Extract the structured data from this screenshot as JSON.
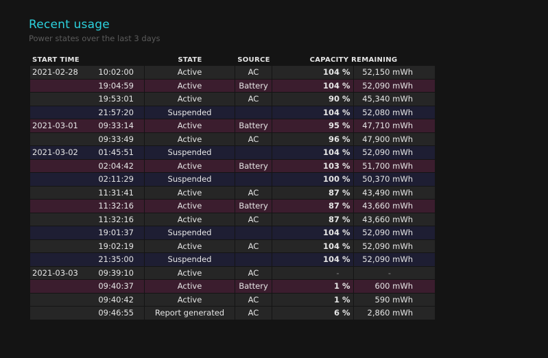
{
  "header": {
    "title": "Recent usage",
    "subtitle": "Power states over the last 3 days"
  },
  "columns": {
    "start_time": "START TIME",
    "state": "STATE",
    "source": "SOURCE",
    "capacity": "CAPACITY REMAINING"
  },
  "colors": {
    "title": "#2cd2de",
    "row_ac": "#262626",
    "row_battery": "#3b1d2e",
    "row_suspended": "#1e1e33"
  },
  "rows": [
    {
      "date": "2021-02-28",
      "time": "10:02:00",
      "state": "Active",
      "source": "AC",
      "percent": "104 %",
      "mwh": "52,150 mWh",
      "kind": "ac"
    },
    {
      "date": "",
      "time": "19:04:59",
      "state": "Active",
      "source": "Battery",
      "percent": "104 %",
      "mwh": "52,090 mWh",
      "kind": "battery"
    },
    {
      "date": "",
      "time": "19:53:01",
      "state": "Active",
      "source": "AC",
      "percent": "90 %",
      "mwh": "45,340 mWh",
      "kind": "ac"
    },
    {
      "date": "",
      "time": "21:57:20",
      "state": "Suspended",
      "source": "",
      "percent": "104 %",
      "mwh": "52,080 mWh",
      "kind": "suspended"
    },
    {
      "date": "2021-03-01",
      "time": "09:33:14",
      "state": "Active",
      "source": "Battery",
      "percent": "95 %",
      "mwh": "47,710 mWh",
      "kind": "battery"
    },
    {
      "date": "",
      "time": "09:33:49",
      "state": "Active",
      "source": "AC",
      "percent": "96 %",
      "mwh": "47,900 mWh",
      "kind": "ac"
    },
    {
      "date": "2021-03-02",
      "time": "01:45:51",
      "state": "Suspended",
      "source": "",
      "percent": "104 %",
      "mwh": "52,090 mWh",
      "kind": "suspended"
    },
    {
      "date": "",
      "time": "02:04:42",
      "state": "Active",
      "source": "Battery",
      "percent": "103 %",
      "mwh": "51,700 mWh",
      "kind": "battery"
    },
    {
      "date": "",
      "time": "02:11:29",
      "state": "Suspended",
      "source": "",
      "percent": "100 %",
      "mwh": "50,370 mWh",
      "kind": "suspended"
    },
    {
      "date": "",
      "time": "11:31:41",
      "state": "Active",
      "source": "AC",
      "percent": "87 %",
      "mwh": "43,490 mWh",
      "kind": "ac"
    },
    {
      "date": "",
      "time": "11:32:16",
      "state": "Active",
      "source": "Battery",
      "percent": "87 %",
      "mwh": "43,660 mWh",
      "kind": "battery"
    },
    {
      "date": "",
      "time": "11:32:16",
      "state": "Active",
      "source": "AC",
      "percent": "87 %",
      "mwh": "43,660 mWh",
      "kind": "ac"
    },
    {
      "date": "",
      "time": "19:01:37",
      "state": "Suspended",
      "source": "",
      "percent": "104 %",
      "mwh": "52,090 mWh",
      "kind": "suspended"
    },
    {
      "date": "",
      "time": "19:02:19",
      "state": "Active",
      "source": "AC",
      "percent": "104 %",
      "mwh": "52,090 mWh",
      "kind": "ac"
    },
    {
      "date": "",
      "time": "21:35:00",
      "state": "Suspended",
      "source": "",
      "percent": "104 %",
      "mwh": "52,090 mWh",
      "kind": "suspended"
    },
    {
      "date": "2021-03-03",
      "time": "09:39:10",
      "state": "Active",
      "source": "AC",
      "percent": "-",
      "mwh": "-",
      "kind": "ac"
    },
    {
      "date": "",
      "time": "09:40:37",
      "state": "Active",
      "source": "Battery",
      "percent": "1 %",
      "mwh": "600 mWh",
      "kind": "battery"
    },
    {
      "date": "",
      "time": "09:40:42",
      "state": "Active",
      "source": "AC",
      "percent": "1 %",
      "mwh": "590 mWh",
      "kind": "ac"
    },
    {
      "date": "",
      "time": "09:46:55",
      "state": "Report generated",
      "source": "AC",
      "percent": "6 %",
      "mwh": "2,860 mWh",
      "kind": "ac"
    }
  ]
}
